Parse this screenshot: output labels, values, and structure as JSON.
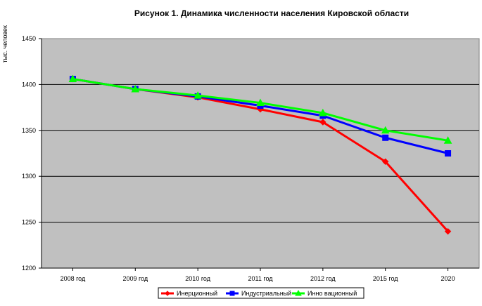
{
  "chart_data": {
    "type": "line",
    "title": "Рисунок 1. Динамика численности населения Кировской области",
    "ylabel": "тыс. человек",
    "xlabel": "",
    "categories": [
      "2008 год",
      "2009 год",
      "2010 год",
      "2011 год",
      "2012 год",
      "2015 год",
      "2020"
    ],
    "ylim": [
      1200,
      1450
    ],
    "yticks": [
      1200,
      1250,
      1300,
      1350,
      1400,
      1450
    ],
    "grid": true,
    "legend_position": "bottom",
    "series": [
      {
        "name": "Инерционный",
        "color": "#ff0000",
        "marker": "diamond",
        "values": [
          1406,
          1395,
          1386,
          1373,
          1359,
          1316,
          1240
        ]
      },
      {
        "name": "Индустриальный",
        "color": "#0000ff",
        "marker": "square",
        "values": [
          1406,
          1395,
          1387,
          1377,
          1366,
          1342,
          1325
        ]
      },
      {
        "name": "Инно вационный",
        "color": "#00ff00",
        "marker": "triangle",
        "values": [
          1406,
          1395,
          1388,
          1380,
          1369,
          1350,
          1339
        ]
      }
    ]
  }
}
